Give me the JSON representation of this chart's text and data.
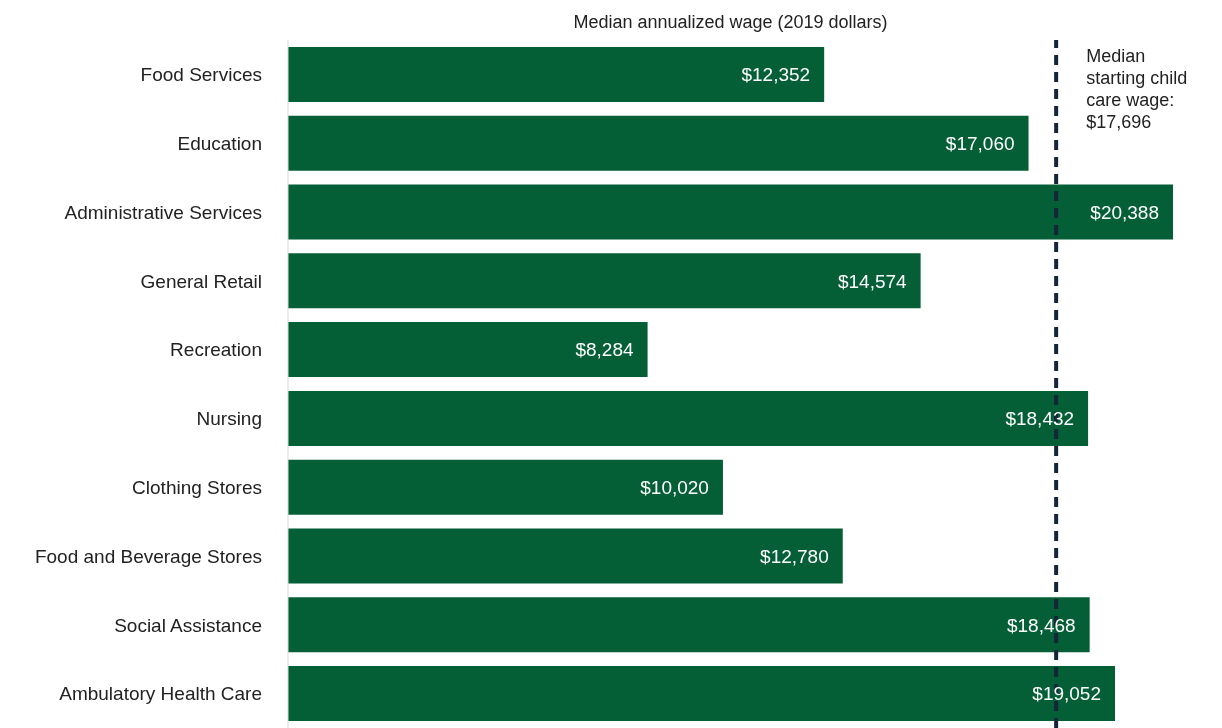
{
  "chart_data": {
    "type": "bar",
    "orientation": "horizontal",
    "title": "Median annualized wage (2019 dollars)",
    "categories": [
      "Food Services",
      "Education",
      "Administrative Services",
      "General Retail",
      "Recreation",
      "Nursing",
      "Clothing Stores",
      "Food and Beverage Stores",
      "Social Assistance",
      "Ambulatory Health Care"
    ],
    "values": [
      12352,
      17060,
      20388,
      14574,
      8284,
      18432,
      10020,
      12780,
      18468,
      19052
    ],
    "value_labels": [
      "$12,352",
      "$17,060",
      "$20,388",
      "$14,574",
      "$8,284",
      "$18,432",
      "$10,020",
      "$12,780",
      "$18,468",
      "$19,052"
    ],
    "color": "#045f36",
    "ref_lines": [
      {
        "axis": "x",
        "value": 17696,
        "label": "Median starting child care wage: $17,696",
        "color": "#14253a",
        "line_style": "dashed"
      }
    ]
  }
}
